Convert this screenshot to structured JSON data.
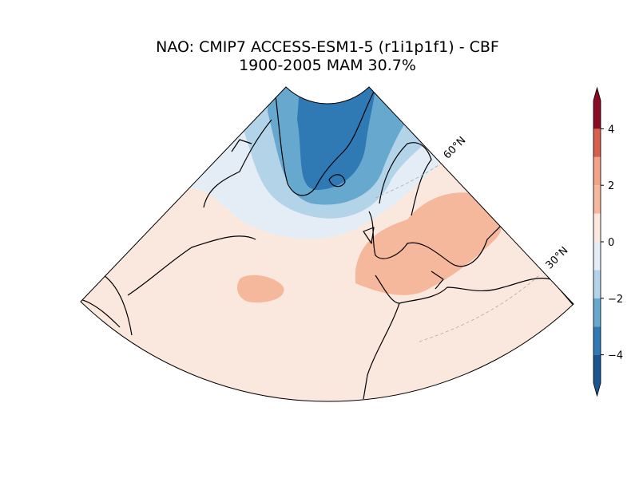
{
  "chart_data": {
    "type": "contour_map",
    "title": "NAO: CMIP7 ACCESS-ESM1-5 (r1i1p1f1) - CBF",
    "subtitle": "1900-2005 MAM 30.7%",
    "lat_labels": [
      "60°N",
      "30°N"
    ],
    "colorbar": {
      "levels": [
        -5,
        -4,
        -3,
        -2,
        -1,
        0,
        1,
        2,
        3,
        4,
        5
      ],
      "colors": [
        "#1a558f",
        "#2f79b5",
        "#67a8cf",
        "#b3d3e8",
        "#e4edf5",
        "#fae8de",
        "#f6b89c",
        "#f3a486",
        "#d6604d",
        "#8b0a25"
      ],
      "ylim": [
        -5,
        5
      ],
      "yticks": [
        {
          "value": -4,
          "label": "−4"
        },
        {
          "value": -2,
          "label": "−2"
        },
        0,
        2,
        4
      ]
    }
  }
}
